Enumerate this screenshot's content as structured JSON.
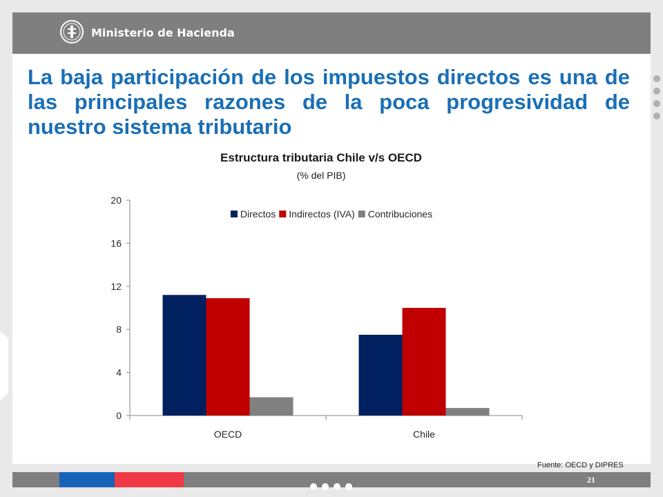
{
  "header": {
    "ministry_name": "Ministerio de Hacienda",
    "logo_icon": "ministry-seal-icon"
  },
  "slide": {
    "title": "La baja participación de los impuestos directos es una de las principales razones de la poca progresividad de nuestro sistema tributario",
    "source": "Fuente: OECD y DIPRES",
    "page_number": "21"
  },
  "colors": {
    "title": "#1a6fb5",
    "header_bar": "#7f7f7f",
    "footer_blue": "#1763b8",
    "footer_red": "#ef3a45"
  },
  "chart_data": {
    "type": "bar",
    "title": "Estructura tributaria Chile v/s OECD",
    "subtitle": "(% del PIB)",
    "categories": [
      "OECD",
      "Chile"
    ],
    "series": [
      {
        "name": "Directos",
        "color": "#002060",
        "values": [
          11.2,
          7.5
        ]
      },
      {
        "name": "Indirectos (IVA)",
        "color": "#c00000",
        "values": [
          10.9,
          10.0
        ]
      },
      {
        "name": "Contribuciones",
        "color": "#808080",
        "values": [
          1.7,
          0.7
        ]
      }
    ],
    "yticks": [
      0,
      4,
      8,
      12,
      16,
      20
    ],
    "ylim": [
      0,
      20
    ],
    "legend": "top",
    "grid": false
  }
}
